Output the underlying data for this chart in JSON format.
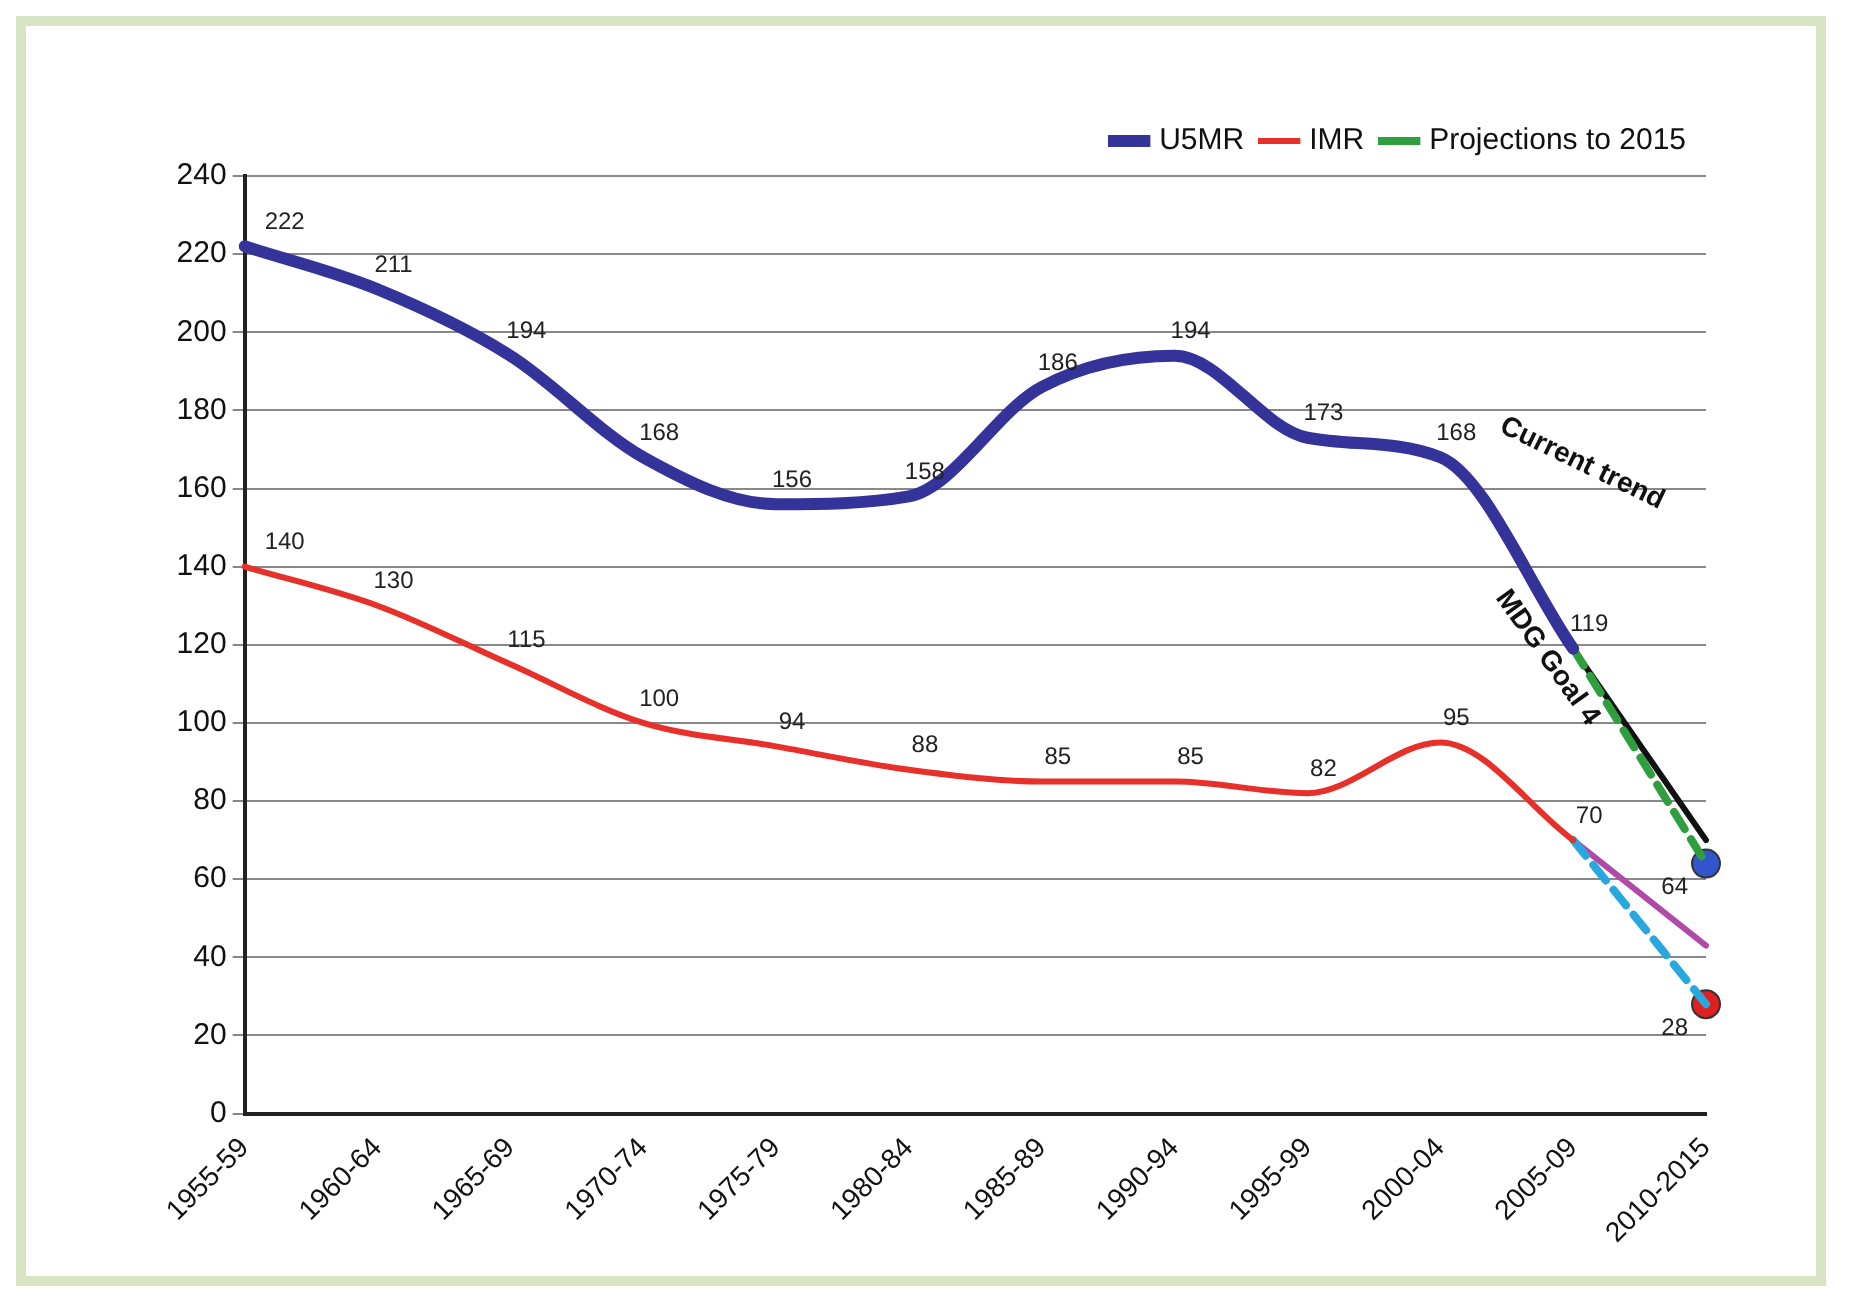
{
  "chart_data": {
    "type": "line",
    "categories": [
      "1955-59",
      "1960-64",
      "1965-69",
      "1970-74",
      "1975-79",
      "1980-84",
      "1985-89",
      "1990-94",
      "1995-99",
      "2000-04",
      "2005-09",
      "2010-2015"
    ],
    "series": [
      {
        "name": "U5MR",
        "color": "#333399",
        "values": [
          222,
          211,
          194,
          168,
          156,
          158,
          186,
          194,
          173,
          168,
          119,
          null
        ],
        "value_labels": [
          "222",
          "211",
          "194",
          "168",
          "156",
          "158",
          "186",
          "194",
          "173",
          "168",
          "119",
          null
        ]
      },
      {
        "name": "IMR",
        "color": "#e8302a",
        "values": [
          140,
          130,
          115,
          100,
          94,
          88,
          85,
          85,
          82,
          95,
          70,
          null
        ],
        "value_labels": [
          "140",
          "130",
          "115",
          "100",
          "94",
          "88",
          "85",
          "85",
          "82",
          "95",
          "70",
          null
        ]
      },
      {
        "name": "Projections to 2015",
        "color": "#2e9e3e",
        "line_style": "dashed",
        "values": [
          null,
          null,
          null,
          null,
          null,
          null,
          null,
          null,
          null,
          null,
          119,
          64
        ]
      },
      {
        "color": "#29a8e0",
        "line_style": "dashed",
        "values": [
          null,
          null,
          null,
          null,
          null,
          null,
          null,
          null,
          null,
          null,
          70,
          28
        ]
      },
      {
        "color": "#111111",
        "values": [
          null,
          null,
          null,
          null,
          null,
          null,
          null,
          null,
          null,
          null,
          119,
          70
        ]
      },
      {
        "color": "#b04aa8",
        "values": [
          null,
          null,
          null,
          null,
          null,
          null,
          null,
          null,
          null,
          null,
          70,
          43
        ]
      },
      {
        "type": "scatter",
        "color": "#3355cc",
        "marker": "circle",
        "x": [
          "2010-2015"
        ],
        "values": [
          64
        ],
        "value_labels": [
          "64"
        ]
      },
      {
        "type": "scatter",
        "color": "#e02020",
        "marker": "circle",
        "x": [
          "2010-2015"
        ],
        "values": [
          28
        ],
        "value_labels": [
          "28"
        ]
      }
    ],
    "annotations": [
      "Current trend",
      "MDG Goal 4"
    ],
    "ylim": [
      0,
      240
    ],
    "yticks": [
      0,
      20,
      40,
      60,
      80,
      100,
      120,
      140,
      160,
      180,
      200,
      220,
      240
    ],
    "grid": "y",
    "legend": "top right"
  }
}
